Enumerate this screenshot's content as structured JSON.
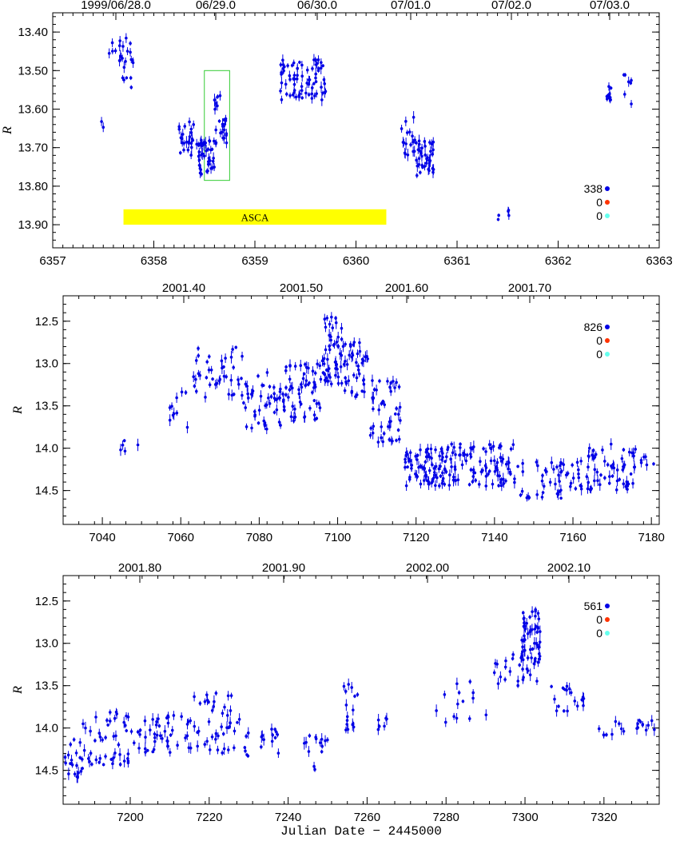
{
  "colors": {
    "points": "#0000e6",
    "legend_blue": "#0000e6",
    "legend_red": "#ff3300",
    "legend_cyan": "#66ffee",
    "asca_band": "#ffff00",
    "highlight_box": "#33cc33"
  },
  "xlabel": "Julian Date − 2445000",
  "chart_data": [
    {
      "type": "scatter",
      "ylabel": "R",
      "xlim": [
        6357,
        6363
      ],
      "ylim": [
        13.35,
        13.96
      ],
      "y_inverted": true,
      "x_ticks": [
        "6357",
        "6358",
        "6359",
        "6360",
        "6361",
        "6362",
        "6363"
      ],
      "y_ticks": [
        "13.40",
        "13.50",
        "13.60",
        "13.70",
        "13.80",
        "13.90"
      ],
      "top_ticks": [
        "1999/06/28.0",
        "06/29.0",
        "06/30.0",
        "07/01.0",
        "07/02.0",
        "07/03.0"
      ],
      "legend": [
        "338",
        "0",
        "0"
      ],
      "annotation": "ASCA",
      "band": {
        "x": [
          6357.7,
          6360.3
        ],
        "y": [
          13.86,
          13.9
        ]
      },
      "box": {
        "x": [
          6358.5,
          6358.75
        ],
        "y": [
          13.5,
          13.785
        ]
      },
      "clusters": [
        {
          "x": [
            6357.45,
            6357.5
          ],
          "y": [
            13.62,
            13.66
          ],
          "n": 2
        },
        {
          "x": [
            6357.55,
            6357.6
          ],
          "y": [
            13.42,
            13.46
          ],
          "n": 3
        },
        {
          "x": [
            6357.62,
            6357.8
          ],
          "y": [
            13.4,
            13.57
          ],
          "n": 22
        },
        {
          "x": [
            6358.25,
            6358.4
          ],
          "y": [
            13.62,
            13.72
          ],
          "n": 24
        },
        {
          "x": [
            6358.4,
            6358.6
          ],
          "y": [
            13.68,
            13.77
          ],
          "n": 40
        },
        {
          "x": [
            6358.6,
            6358.72
          ],
          "y": [
            13.56,
            13.72
          ],
          "n": 24
        },
        {
          "x": [
            6359.25,
            6359.7
          ],
          "y": [
            13.47,
            13.58
          ],
          "n": 75
        },
        {
          "x": [
            6360.45,
            6360.58
          ],
          "y": [
            13.62,
            13.72
          ],
          "n": 16
        },
        {
          "x": [
            6360.58,
            6360.78
          ],
          "y": [
            13.68,
            13.78
          ],
          "n": 38
        },
        {
          "x": [
            6361.4,
            6361.52
          ],
          "y": [
            13.86,
            13.89
          ],
          "n": 5
        },
        {
          "x": [
            6362.45,
            6362.55
          ],
          "y": [
            13.54,
            13.58
          ],
          "n": 10
        },
        {
          "x": [
            6362.65,
            6362.75
          ],
          "y": [
            13.51,
            13.6
          ],
          "n": 7
        }
      ]
    },
    {
      "type": "scatter",
      "ylabel": "R",
      "xlim": [
        7030,
        7182
      ],
      "ylim": [
        12.2,
        14.9
      ],
      "y_inverted": true,
      "x_ticks": [
        "7040",
        "7060",
        "7080",
        "7100",
        "7120",
        "7140",
        "7160",
        "7180"
      ],
      "y_ticks": [
        "12.5",
        "13.0",
        "13.5",
        "14.0",
        "14.5"
      ],
      "top_ticks": [
        "2001.40",
        "2001.50",
        "2001.60",
        "2001.70"
      ],
      "legend": [
        "826",
        "0",
        "0"
      ],
      "clusters": [
        {
          "x": [
            7044,
            7050
          ],
          "y": [
            13.9,
            14.05
          ],
          "n": 5
        },
        {
          "x": [
            7057,
            7062
          ],
          "y": [
            13.2,
            13.9
          ],
          "n": 10
        },
        {
          "x": [
            7063,
            7076
          ],
          "y": [
            12.8,
            13.4
          ],
          "n": 40
        },
        {
          "x": [
            7076,
            7086
          ],
          "y": [
            13.1,
            13.8
          ],
          "n": 45
        },
        {
          "x": [
            7086,
            7096
          ],
          "y": [
            13.0,
            13.7
          ],
          "n": 60
        },
        {
          "x": [
            7096,
            7101
          ],
          "y": [
            12.45,
            13.25
          ],
          "n": 50
        },
        {
          "x": [
            7101,
            7108
          ],
          "y": [
            12.7,
            13.4
          ],
          "n": 45
        },
        {
          "x": [
            7108,
            7116
          ],
          "y": [
            13.2,
            13.95
          ],
          "n": 45
        },
        {
          "x": [
            7117,
            7128
          ],
          "y": [
            14.0,
            14.45
          ],
          "n": 80
        },
        {
          "x": [
            7128,
            7146
          ],
          "y": [
            13.95,
            14.45
          ],
          "n": 90
        },
        {
          "x": [
            7146,
            7160
          ],
          "y": [
            14.15,
            14.6
          ],
          "n": 40
        },
        {
          "x": [
            7160,
            7176
          ],
          "y": [
            13.95,
            14.5
          ],
          "n": 70
        },
        {
          "x": [
            7177,
            7181
          ],
          "y": [
            14.05,
            14.2
          ],
          "n": 6
        }
      ]
    },
    {
      "type": "scatter",
      "ylabel": "R",
      "xlim": [
        7183,
        7334
      ],
      "ylim": [
        12.2,
        14.9
      ],
      "y_inverted": true,
      "x_ticks": [
        "7200",
        "7220",
        "7240",
        "7260",
        "7280",
        "7300",
        "7320"
      ],
      "y_ticks": [
        "12.5",
        "13.0",
        "13.5",
        "14.0",
        "14.5"
      ],
      "top_ticks": [
        "2001.80",
        "2001.90",
        "2002.00",
        "2002.10"
      ],
      "legend": [
        "561",
        "0",
        "0"
      ],
      "clusters": [
        {
          "x": [
            7183,
            7188
          ],
          "y": [
            14.1,
            14.6
          ],
          "n": 20
        },
        {
          "x": [
            7188,
            7200
          ],
          "y": [
            13.8,
            14.45
          ],
          "n": 45
        },
        {
          "x": [
            7200,
            7215
          ],
          "y": [
            13.85,
            14.3
          ],
          "n": 45
        },
        {
          "x": [
            7215,
            7228
          ],
          "y": [
            13.55,
            14.3
          ],
          "n": 45
        },
        {
          "x": [
            7229,
            7238
          ],
          "y": [
            14.0,
            14.35
          ],
          "n": 18
        },
        {
          "x": [
            7243,
            7250
          ],
          "y": [
            14.05,
            14.5
          ],
          "n": 14
        },
        {
          "x": [
            7254,
            7258
          ],
          "y": [
            13.4,
            14.05
          ],
          "n": 16
        },
        {
          "x": [
            7262,
            7267
          ],
          "y": [
            13.85,
            14.2
          ],
          "n": 6
        },
        {
          "x": [
            7277,
            7292
          ],
          "y": [
            13.45,
            13.95
          ],
          "n": 14
        },
        {
          "x": [
            7292,
            7299
          ],
          "y": [
            13.1,
            13.5
          ],
          "n": 14
        },
        {
          "x": [
            7299,
            7304
          ],
          "y": [
            12.6,
            13.45
          ],
          "n": 60
        },
        {
          "x": [
            7306,
            7315
          ],
          "y": [
            13.45,
            13.8
          ],
          "n": 18
        },
        {
          "x": [
            7318,
            7334
          ],
          "y": [
            13.9,
            14.1
          ],
          "n": 20
        }
      ]
    }
  ]
}
